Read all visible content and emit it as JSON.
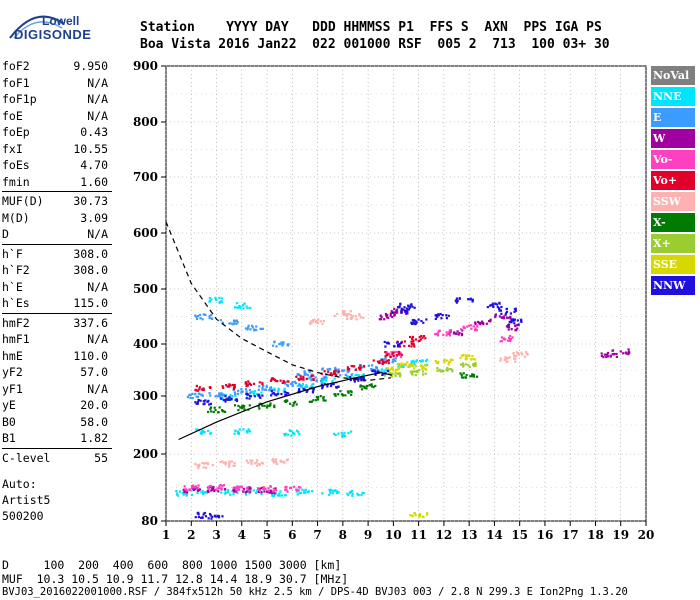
{
  "logo": {
    "line1": "Lowell",
    "line2": "DIGISONDE"
  },
  "header": {
    "row1": "Station    YYYY DAY   DDD HHMMSS P1  FFS S  AXN  PPS IGA PS",
    "row2": "Boa Vista 2016 Jan22  022 001000 RSF  005 2  713  100 03+ 30"
  },
  "params": [
    {
      "label": "foF2",
      "value": "9.950"
    },
    {
      "label": "foF1",
      "value": "N/A"
    },
    {
      "label": "foF1p",
      "value": "N/A"
    },
    {
      "label": "foE",
      "value": "N/A"
    },
    {
      "label": "foEp",
      "value": "0.43"
    },
    {
      "label": "fxI",
      "value": "10.55"
    },
    {
      "label": "foEs",
      "value": "4.70"
    },
    {
      "label": "fmin",
      "value": "1.60"
    },
    {
      "label": "MUF(D)",
      "value": "30.73"
    },
    {
      "label": "M(D)",
      "value": "3.09"
    },
    {
      "label": "D",
      "value": "N/A"
    },
    {
      "label": "h`F",
      "value": "308.0"
    },
    {
      "label": "h`F2",
      "value": "308.0"
    },
    {
      "label": "h`E",
      "value": "N/A"
    },
    {
      "label": "h`Es",
      "value": "115.0"
    },
    {
      "label": "hmF2",
      "value": "337.6"
    },
    {
      "label": "hmF1",
      "value": "N/A"
    },
    {
      "label": "hmE",
      "value": "110.0"
    },
    {
      "label": "yF2",
      "value": "57.0"
    },
    {
      "label": "yF1",
      "value": "N/A"
    },
    {
      "label": "yE",
      "value": "20.0"
    },
    {
      "label": "B0",
      "value": "58.0"
    },
    {
      "label": "B1",
      "value": "1.82"
    },
    {
      "label": "C-level",
      "value": "55"
    }
  ],
  "auto": {
    "line1": "Auto:",
    "line2": "Artist5",
    "line3": "500200"
  },
  "legend": [
    {
      "label": "NoVal",
      "color": "#808080"
    },
    {
      "label": "NNE",
      "color": "#00e5ff"
    },
    {
      "label": "E",
      "color": "#3a9cff"
    },
    {
      "label": "W",
      "color": "#a000a0"
    },
    {
      "label": "Vo-",
      "color": "#ff40c0"
    },
    {
      "label": "Vo+",
      "color": "#e0002a"
    },
    {
      "label": "SSW",
      "color": "#ffb0b0"
    },
    {
      "label": "X-",
      "color": "#007a00"
    },
    {
      "label": "X+",
      "color": "#9acd32"
    },
    {
      "label": "SSE",
      "color": "#d8d800"
    },
    {
      "label": "NNW",
      "color": "#2010e0"
    }
  ],
  "footer": {
    "row1": "D     100  200  400  600  800 1000 1500 3000 [km]",
    "row2": "MUF  10.3 10.5 10.9 11.7 12.8 14.4 18.9 30.7 [MHz]",
    "row3": "BVJ03_2016022001000.RSF / 384fx512h 50 kHz 2.5 km / DPS-4D BVJ03 003 / 2.8 N 299.3 E Ion2Png 1.3.20"
  },
  "chart_data": {
    "type": "scatter",
    "xlim": [
      1,
      20
    ],
    "ylim": [
      80,
      900
    ],
    "x_ticks": [
      "1",
      "2",
      "3",
      "4",
      "5",
      "6",
      "7",
      "8",
      "9",
      "10",
      "11",
      "12",
      "13",
      "14",
      "15",
      "16",
      "17",
      "18",
      "19",
      "20"
    ],
    "y_ticks": [
      "80",
      "200",
      "300",
      "400",
      "500",
      "600",
      "700",
      "800",
      "900"
    ],
    "y_tick_values": [
      80,
      200,
      300,
      400,
      500,
      600,
      700,
      800,
      900
    ],
    "grid": true,
    "legend_placement": "right",
    "series": [
      {
        "name": "NNE",
        "color": "#00e5ff",
        "points": [
          [
            1.7,
            130
          ],
          [
            2.5,
            133
          ],
          [
            3.5,
            132
          ],
          [
            4.5,
            131
          ],
          [
            5.5,
            130
          ],
          [
            6.5,
            132
          ],
          [
            7.5,
            131
          ],
          [
            8.5,
            130
          ],
          [
            2.5,
            240
          ],
          [
            4,
            238
          ],
          [
            6,
            236
          ],
          [
            8,
            235
          ],
          [
            3.5,
            298
          ],
          [
            4.5,
            305
          ],
          [
            5.5,
            312
          ],
          [
            6.5,
            320
          ],
          [
            7.5,
            330
          ],
          [
            8.5,
            338
          ],
          [
            9.5,
            348
          ],
          [
            10.5,
            360
          ],
          [
            11,
            365
          ],
          [
            3,
            480
          ],
          [
            4,
            470
          ]
        ]
      },
      {
        "name": "E",
        "color": "#3a9cff",
        "points": [
          [
            2.2,
            300
          ],
          [
            3,
            303
          ],
          [
            4,
            309
          ],
          [
            5,
            315
          ],
          [
            6,
            323
          ],
          [
            7,
            333
          ],
          [
            8,
            345
          ],
          [
            9,
            355
          ],
          [
            9.8,
            368
          ],
          [
            2.5,
            450
          ],
          [
            3.5,
            440
          ],
          [
            4.5,
            430
          ],
          [
            5.5,
            400
          ],
          [
            6.5,
            345
          ],
          [
            7.5,
            350
          ]
        ]
      },
      {
        "name": "W",
        "color": "#a000a0",
        "points": [
          [
            2,
            135
          ],
          [
            3,
            137
          ],
          [
            4,
            136
          ],
          [
            5,
            135
          ],
          [
            9.8,
            450
          ],
          [
            10.2,
            460
          ],
          [
            12.5,
            420
          ],
          [
            13.5,
            440
          ],
          [
            14.3,
            450
          ],
          [
            14.8,
            430
          ],
          [
            18.5,
            380
          ],
          [
            19,
            385
          ]
        ]
      },
      {
        "name": "Vo-",
        "color": "#ff40c0",
        "points": [
          [
            2,
            140
          ],
          [
            3,
            140
          ],
          [
            4,
            139
          ],
          [
            5,
            138
          ],
          [
            6,
            137
          ],
          [
            10,
            380
          ],
          [
            12,
            420
          ],
          [
            13,
            430
          ],
          [
            14.5,
            410
          ]
        ]
      },
      {
        "name": "Vo+",
        "color": "#e0002a",
        "points": [
          [
            2.5,
            315
          ],
          [
            3.5,
            318
          ],
          [
            4.5,
            324
          ],
          [
            5.5,
            330
          ],
          [
            6.5,
            336
          ],
          [
            7.5,
            345
          ],
          [
            8.5,
            354
          ],
          [
            9.5,
            366
          ],
          [
            10,
            380
          ],
          [
            10.5,
            400
          ],
          [
            11,
            410
          ]
        ]
      },
      {
        "name": "SSW",
        "color": "#ffb0b0",
        "points": [
          [
            2.5,
            180
          ],
          [
            3.5,
            182
          ],
          [
            4.5,
            184
          ],
          [
            5.5,
            187
          ],
          [
            7,
            440
          ],
          [
            8,
            455
          ],
          [
            8.5,
            450
          ],
          [
            14.5,
            370
          ],
          [
            15,
            380
          ]
        ]
      },
      {
        "name": "X-",
        "color": "#007a00",
        "points": [
          [
            3,
            276
          ],
          [
            4,
            280
          ],
          [
            5,
            283
          ],
          [
            6,
            288
          ],
          [
            7,
            295
          ],
          [
            8,
            305
          ],
          [
            9,
            318
          ],
          [
            13,
            340
          ]
        ]
      },
      {
        "name": "X+",
        "color": "#9acd32",
        "points": [
          [
            10,
            340
          ],
          [
            11,
            345
          ],
          [
            12,
            352
          ],
          [
            13,
            360
          ]
        ]
      },
      {
        "name": "SSE",
        "color": "#d8d800",
        "points": [
          [
            10,
            350
          ],
          [
            10.5,
            360
          ],
          [
            11,
            355
          ],
          [
            12,
            365
          ],
          [
            13,
            375
          ],
          [
            11,
            90
          ]
        ]
      },
      {
        "name": "NNW",
        "color": "#2010e0",
        "points": [
          [
            2.5,
            290
          ],
          [
            3.5,
            295
          ],
          [
            4.5,
            300
          ],
          [
            5.5,
            305
          ],
          [
            6.5,
            312
          ],
          [
            7.5,
            320
          ],
          [
            8.5,
            332
          ],
          [
            9.5,
            345
          ],
          [
            10,
            400
          ],
          [
            10.3,
            460
          ],
          [
            10.5,
            470
          ],
          [
            11,
            440
          ],
          [
            12,
            450
          ],
          [
            12.8,
            480
          ],
          [
            14,
            470
          ],
          [
            14.5,
            460
          ],
          [
            14.8,
            440
          ],
          [
            2.5,
            90
          ],
          [
            3,
            85
          ]
        ]
      }
    ],
    "profile_curve": [
      [
        1.5,
        225
      ],
      [
        3,
        255
      ],
      [
        5,
        290
      ],
      [
        7,
        318
      ],
      [
        8.5,
        335
      ],
      [
        9.5,
        345
      ],
      [
        9.95,
        340
      ]
    ],
    "dashed_curve": [
      [
        1,
        620
      ],
      [
        2,
        510
      ],
      [
        3,
        445
      ],
      [
        4,
        410
      ],
      [
        5,
        385
      ],
      [
        6,
        360
      ],
      [
        7,
        345
      ],
      [
        8,
        335
      ],
      [
        9,
        330
      ],
      [
        9.9,
        335
      ]
    ]
  }
}
